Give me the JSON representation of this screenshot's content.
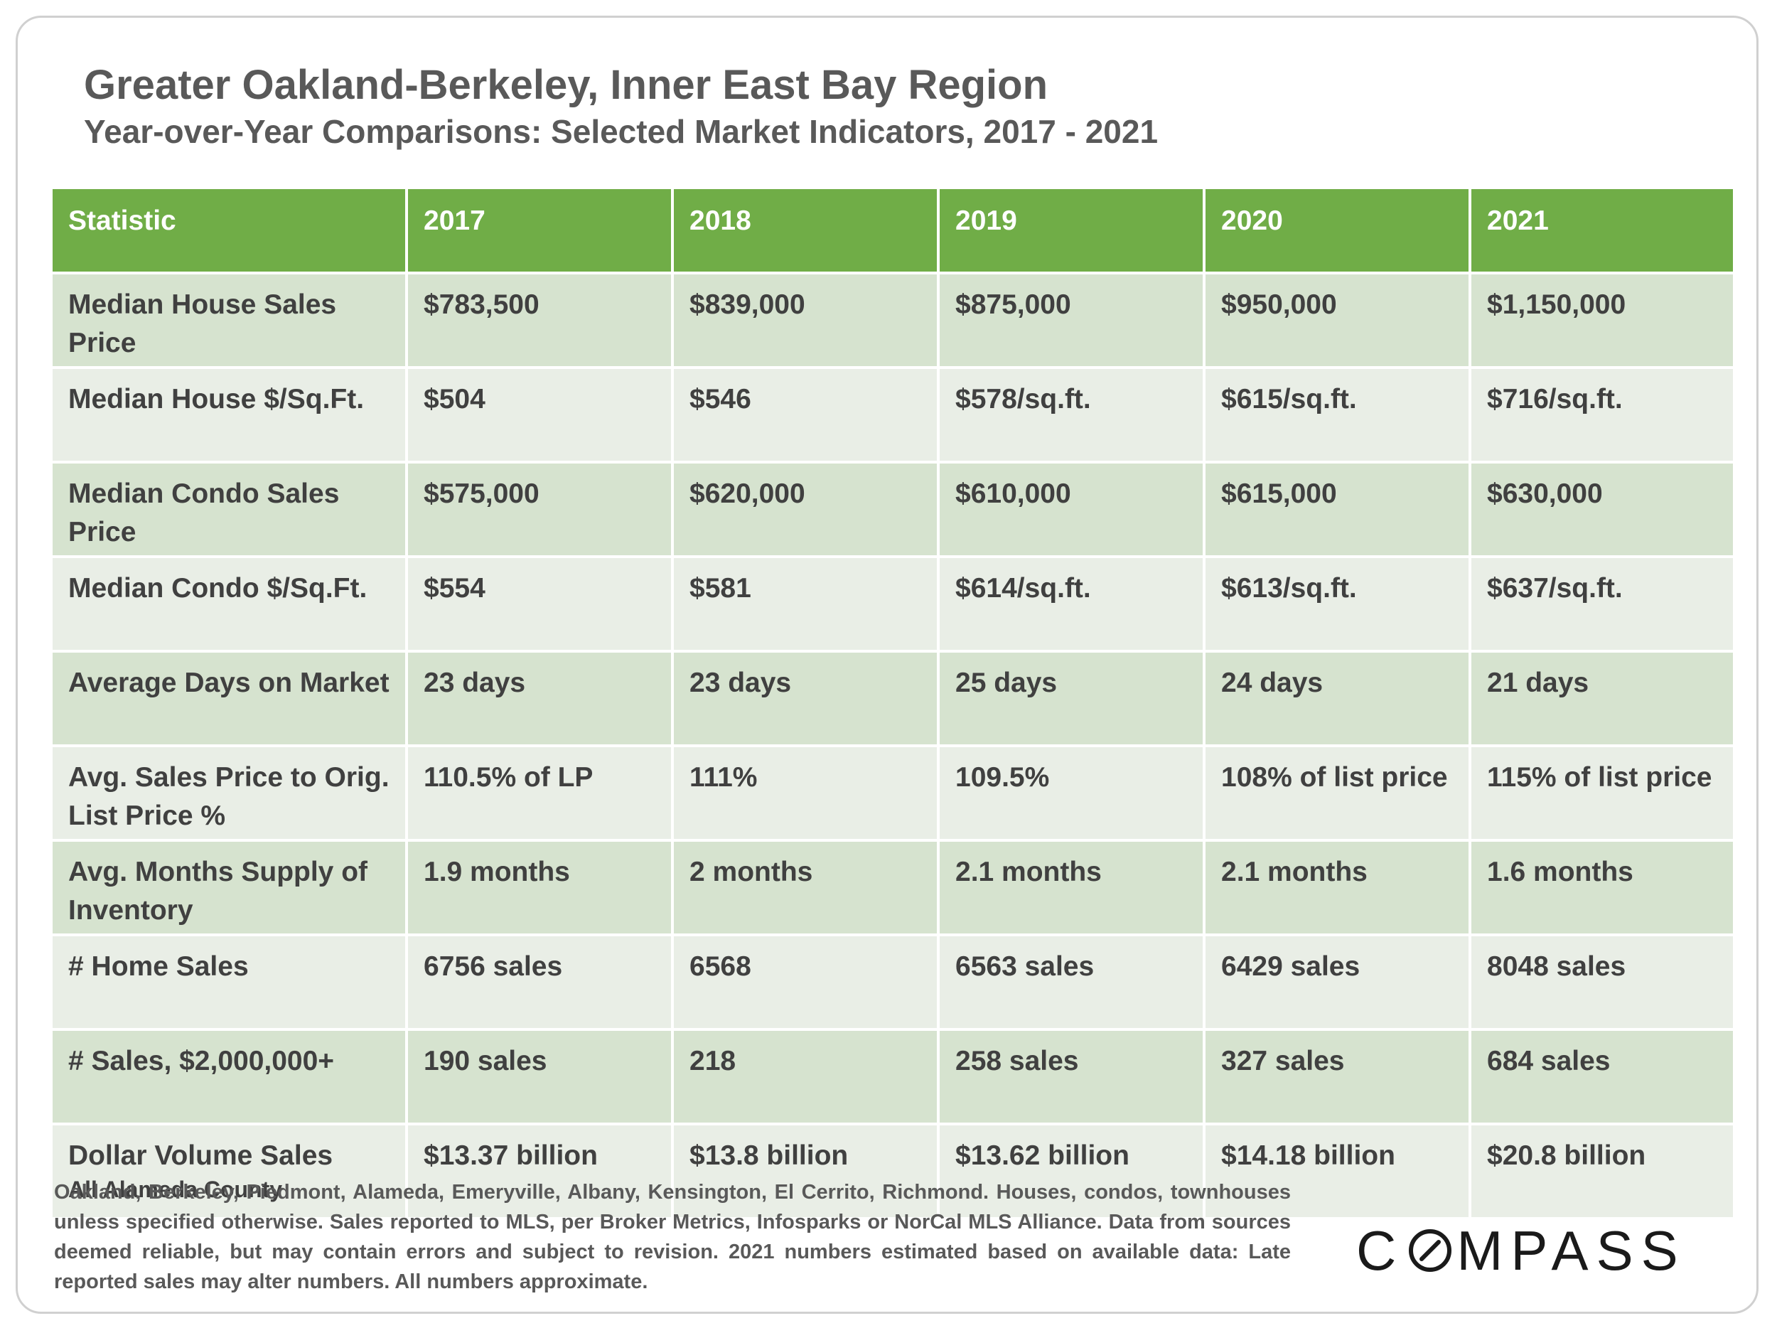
{
  "title": "Greater Oakland-Berkeley, Inner East Bay Region",
  "subtitle": "Year-over-Year Comparisons: Selected Market Indicators, 2017 - 2021",
  "chart_data": {
    "type": "table",
    "columns": [
      "Statistic",
      "2017",
      "2018",
      "2019",
      "2020",
      "2021"
    ],
    "rows": [
      {
        "label": "Median House Sales Price",
        "sublabel": "",
        "values": [
          "$783,500",
          "$839,000",
          "$875,000",
          "$950,000",
          "$1,150,000"
        ]
      },
      {
        "label": "Median House $/Sq.Ft.",
        "sublabel": "",
        "values": [
          "$504",
          "$546",
          "$578/sq.ft.",
          "$615/sq.ft.",
          "$716/sq.ft."
        ]
      },
      {
        "label": "Median Condo Sales Price",
        "sublabel": "",
        "values": [
          "$575,000",
          "$620,000",
          "$610,000",
          "$615,000",
          "$630,000"
        ]
      },
      {
        "label": "Median Condo $/Sq.Ft.",
        "sublabel": "",
        "values": [
          "$554",
          "$581",
          "$614/sq.ft.",
          "$613/sq.ft.",
          "$637/sq.ft."
        ]
      },
      {
        "label": "Average Days on Market",
        "sublabel": "",
        "values": [
          "23 days",
          "23 days",
          "25 days",
          "24 days",
          "21 days"
        ]
      },
      {
        "label": "Avg. Sales Price to Orig. List Price %",
        "sublabel": "",
        "values": [
          "110.5% of LP",
          "111%",
          "109.5%",
          "108% of list price",
          "115% of list price"
        ]
      },
      {
        "label": "Avg. Months Supply of Inventory",
        "sublabel": "",
        "values": [
          "1.9 months",
          "2 months",
          "2.1 months",
          "2.1 months",
          "1.6 months"
        ]
      },
      {
        "label": "# Home Sales",
        "sublabel": "",
        "values": [
          "6756 sales",
          "6568",
          "6563 sales",
          "6429 sales",
          "8048 sales"
        ]
      },
      {
        "label": "# Sales, $2,000,000+",
        "sublabel": "",
        "values": [
          "190 sales",
          "218",
          "258 sales",
          "327 sales",
          "684 sales"
        ]
      },
      {
        "label": "Dollar Volume Sales",
        "sublabel": "All Alameda County",
        "values": [
          "$13.37 billion",
          "$13.8 billion",
          "$13.62 billion",
          "$14.18 billion",
          "$20.8 billion"
        ]
      }
    ]
  },
  "footnote": "Oakland, Berkeley, Piedmont, Alameda, Emeryville, Albany, Kensington, El Cerrito, Richmond. Houses, condos, townhouses unless specified otherwise. Sales reported to MLS, per Broker Metrics, Infosparks or NorCal MLS Alliance. Data from sources deemed reliable, but may contain errors and subject to revision. 2021 numbers estimated based on available data: Late reported sales may alter numbers. All numbers approximate.",
  "logo": {
    "text": "COMPASS"
  },
  "colors": {
    "header": "#70ad47",
    "row_dark": "#d6e3cf",
    "row_light": "#e9eee6",
    "text": "#404040",
    "title": "#595959"
  }
}
